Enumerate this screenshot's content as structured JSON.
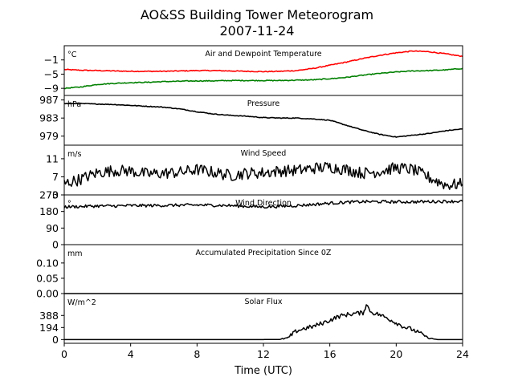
{
  "title": "AO&SS Building Tower Meteorogram",
  "date": "2007-11-24",
  "chart_data": [
    {
      "type": "line",
      "panel_label": "Air and Dewpoint Temperature",
      "unit": "°C",
      "ylim": [
        -11,
        3
      ],
      "yticks": [
        -1,
        -5,
        -9
      ],
      "ytick_labels": [
        "−1",
        "−5",
        "−9"
      ],
      "series": [
        {
          "color": "#ff0000",
          "x": [
            0,
            1,
            2,
            3,
            4,
            5,
            6,
            7,
            8,
            9,
            10,
            11,
            12,
            13,
            14,
            15,
            16,
            17,
            18,
            19,
            20,
            21,
            22,
            23,
            24
          ],
          "values": [
            -3.7,
            -3.9,
            -4.0,
            -4.1,
            -4.2,
            -4.2,
            -4.2,
            -4.1,
            -4.0,
            -4.0,
            -4.1,
            -4.2,
            -4.3,
            -4.2,
            -4.0,
            -3.4,
            -2.5,
            -1.6,
            -0.6,
            0.3,
            1.0,
            1.5,
            1.3,
            0.7,
            0.0
          ]
        },
        {
          "color": "#008000",
          "x": [
            0,
            1,
            2,
            3,
            4,
            5,
            6,
            7,
            8,
            9,
            10,
            11,
            12,
            13,
            14,
            15,
            16,
            17,
            18,
            19,
            20,
            21,
            22,
            23,
            24
          ],
          "values": [
            -9.0,
            -8.6,
            -7.9,
            -7.6,
            -7.4,
            -7.3,
            -7.1,
            -7.0,
            -6.9,
            -6.9,
            -6.8,
            -6.8,
            -6.8,
            -6.8,
            -6.7,
            -6.6,
            -6.3,
            -5.9,
            -5.3,
            -4.8,
            -4.4,
            -4.1,
            -4.0,
            -3.8,
            -3.4
          ]
        }
      ]
    },
    {
      "type": "line",
      "panel_label": "Pressure",
      "unit": "hPa",
      "ylim": [
        977,
        988
      ],
      "yticks": [
        987,
        983,
        979
      ],
      "ytick_labels": [
        "987",
        "983",
        "979"
      ],
      "series": [
        {
          "color": "#000000",
          "x": [
            0,
            1,
            2,
            3,
            4,
            5,
            6,
            7,
            8,
            9,
            10,
            11,
            12,
            13,
            14,
            15,
            16,
            17,
            18,
            19,
            20,
            21,
            22,
            23,
            24
          ],
          "values": [
            986.2,
            986.2,
            986.1,
            986.0,
            985.8,
            985.6,
            985.4,
            985.0,
            984.4,
            983.9,
            983.6,
            983.4,
            983.1,
            983.0,
            983.0,
            982.8,
            982.5,
            981.4,
            980.3,
            979.4,
            978.8,
            979.2,
            979.6,
            980.2,
            980.6
          ]
        }
      ]
    },
    {
      "type": "line",
      "panel_label": "Wind Speed",
      "unit": "m/s",
      "ylim": [
        3,
        14
      ],
      "yticks": [
        11,
        7,
        3
      ],
      "ytick_labels": [
        "11",
        "7",
        "3"
      ],
      "series": [
        {
          "color": "#000000",
          "x": [
            0,
            1,
            2,
            3,
            4,
            5,
            6,
            7,
            8,
            9,
            10,
            11,
            12,
            13,
            14,
            15,
            16,
            17,
            18,
            19,
            20,
            21,
            22,
            23,
            24
          ],
          "values": [
            5.5,
            6.5,
            7.9,
            8.4,
            8.3,
            7.6,
            7.8,
            8.0,
            8.6,
            8.0,
            7.3,
            7.8,
            7.9,
            8.3,
            8.4,
            8.9,
            9.2,
            8.6,
            7.8,
            8.2,
            9.0,
            8.6,
            6.8,
            5.2,
            5.4
          ]
        }
      ]
    },
    {
      "type": "line",
      "panel_label": "Wind Direction",
      "unit": "°",
      "ylim": [
        0,
        270
      ],
      "yticks": [
        270,
        180,
        90,
        0
      ],
      "ytick_labels": [
        "270",
        "180",
        "90",
        "0"
      ],
      "series": [
        {
          "color": "#000000",
          "x": [
            0,
            1,
            2,
            3,
            4,
            5,
            6,
            7,
            8,
            9,
            10,
            11,
            12,
            13,
            14,
            15,
            16,
            17,
            18,
            19,
            20,
            21,
            22,
            23,
            24
          ],
          "values": [
            205,
            207,
            210,
            210,
            212,
            212,
            213,
            214,
            215,
            214,
            212,
            208,
            205,
            208,
            212,
            218,
            225,
            230,
            233,
            233,
            232,
            232,
            234,
            235,
            235
          ]
        }
      ]
    },
    {
      "type": "line",
      "panel_label": "Accumulated Precipitation Since 0Z",
      "unit": "mm",
      "ylim": [
        0,
        0.16
      ],
      "yticks": [
        0.1,
        0.05,
        0.0
      ],
      "ytick_labels": [
        "0.10",
        "0.05",
        "0.00"
      ],
      "series": [
        {
          "color": "#000000",
          "x": [
            0,
            24
          ],
          "values": [
            0,
            0
          ]
        }
      ]
    },
    {
      "type": "line",
      "panel_label": "Solar Flux",
      "unit": "W/m^2",
      "ylim": [
        -60,
        740
      ],
      "yticks": [
        388,
        194,
        0
      ],
      "ytick_labels": [
        "388",
        "194",
        "0"
      ],
      "xlabel": "Time (UTC)",
      "xlim": [
        0,
        24
      ],
      "xticks": [
        0,
        4,
        8,
        12,
        16,
        20,
        24
      ],
      "xtick_labels": [
        "0",
        "4",
        "8",
        "12",
        "16",
        "20",
        "24"
      ],
      "series": [
        {
          "color": "#000000",
          "x": [
            0,
            12,
            13,
            13.5,
            14,
            14.5,
            15,
            15.5,
            16,
            16.5,
            17,
            17.5,
            18,
            18.2,
            18.5,
            19,
            19.5,
            20,
            20.5,
            21,
            21.5,
            22,
            22.5,
            23,
            24
          ],
          "values": [
            0,
            0,
            2,
            30,
            140,
            180,
            210,
            260,
            310,
            370,
            400,
            420,
            430,
            560,
            440,
            400,
            340,
            270,
            200,
            160,
            90,
            20,
            0,
            0,
            0
          ]
        }
      ]
    }
  ]
}
